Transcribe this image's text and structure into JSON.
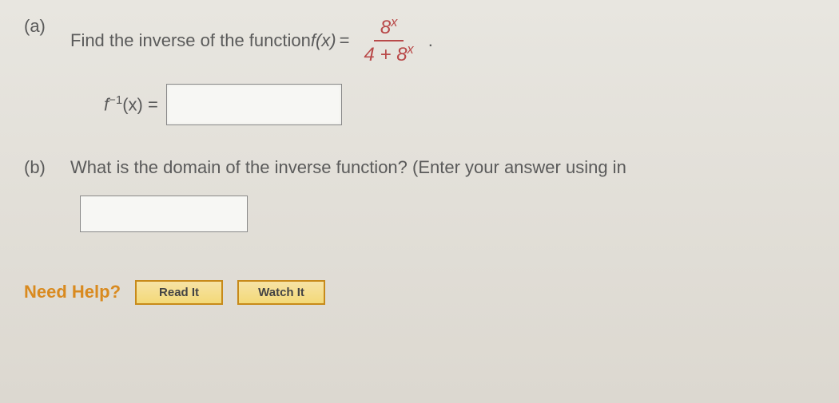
{
  "partA": {
    "label": "(a)",
    "prompt_prefix": "Find the inverse of the function ",
    "fx": "f(x)",
    "equals": " = ",
    "fraction": {
      "numerator_base": "8",
      "numerator_exp": "x",
      "denominator_left": "4 + ",
      "denominator_base": "8",
      "denominator_exp": "x"
    },
    "trailing": ".",
    "answer_label_f": "f",
    "answer_label_exp": "−1",
    "answer_label_x": "(x) = ",
    "input_value": ""
  },
  "partB": {
    "label": "(b)",
    "prompt": "What is the domain of the inverse function? (Enter your answer using in",
    "input_value": ""
  },
  "help": {
    "label": "Need Help?",
    "read_btn": "Read It",
    "watch_btn": "Watch It"
  },
  "colors": {
    "accent_red": "#b94a4a",
    "accent_orange": "#d98a1f",
    "btn_border": "#c78a1a"
  }
}
